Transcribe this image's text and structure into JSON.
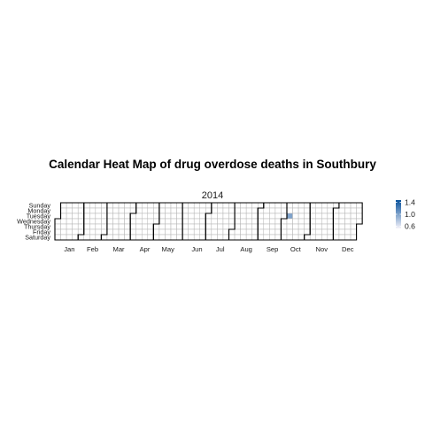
{
  "chart_data": {
    "type": "heatmap",
    "title": "Calendar Heat Map of drug overdose deaths in Southbury",
    "year": "2014",
    "weekday_labels": [
      "Sunday",
      "Monday",
      "Tuesday",
      "Wednesday",
      "Thursday",
      "Friday",
      "Saturday"
    ],
    "month_labels": [
      "Jan",
      "Feb",
      "Mar",
      "Apr",
      "May",
      "Jun",
      "Jul",
      "Aug",
      "Sep",
      "Oct",
      "Nov",
      "Dec"
    ],
    "values": [
      {
        "date": "2014-10-07",
        "value": 1.0
      }
    ],
    "legend": {
      "ticks": [
        1.4,
        1.0,
        0.6
      ],
      "range": [
        0.6,
        1.4
      ],
      "low_color": "#f5f3fa",
      "high_color": "#08519c"
    },
    "cell_fill_empty": "#ffffff",
    "cell_grid_color": "#b3b3b3",
    "month_border_color": "#000000"
  }
}
